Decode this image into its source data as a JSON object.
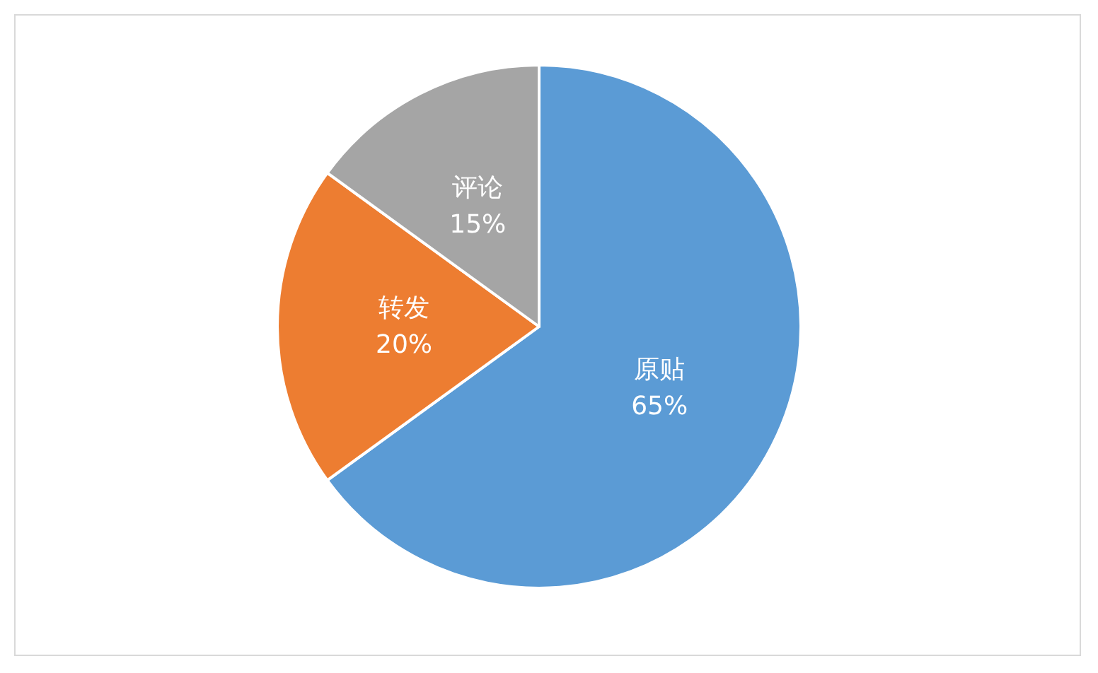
{
  "chart_data": {
    "type": "pie",
    "categories": [
      "原贴",
      "转发",
      "评论"
    ],
    "values": [
      65,
      20,
      15
    ],
    "colors": [
      "#5b9bd5",
      "#ed7d31",
      "#a5a5a5"
    ],
    "value_labels": [
      "65%",
      "20%",
      "15%"
    ],
    "legend": false
  }
}
